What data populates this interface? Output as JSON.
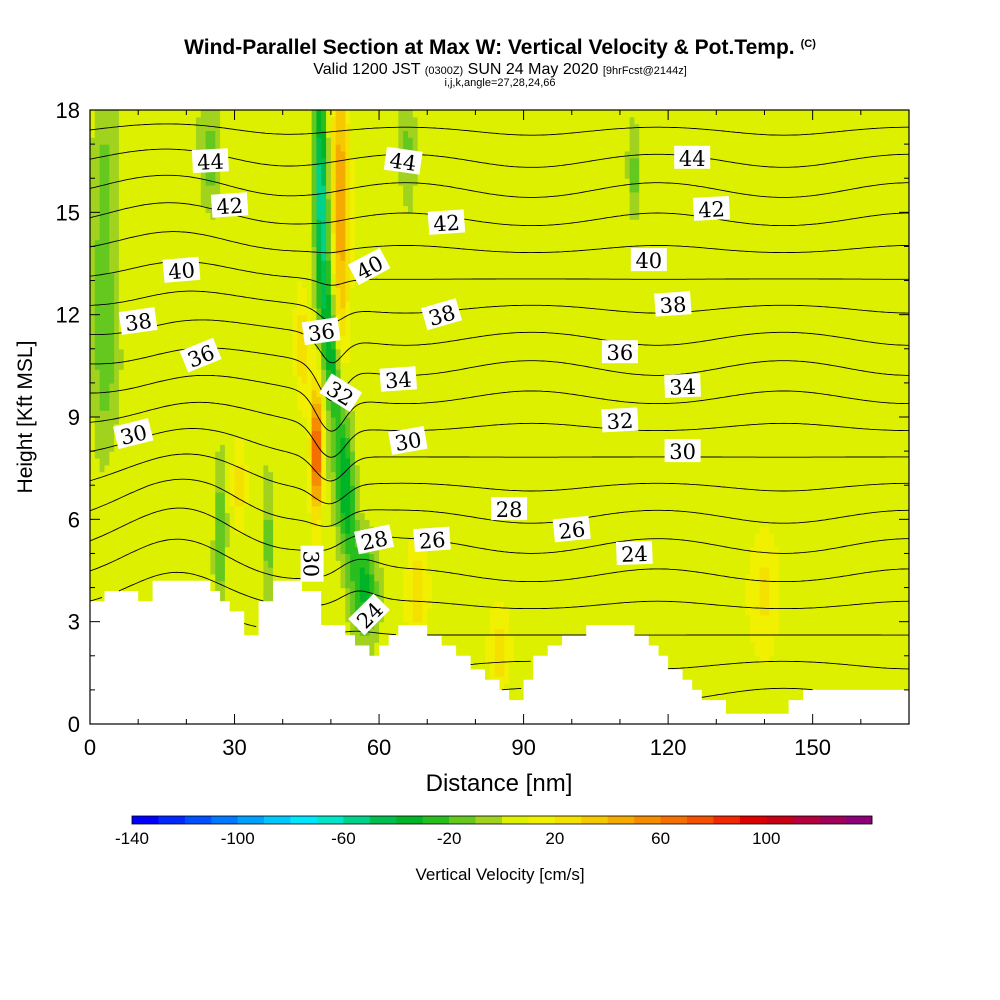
{
  "header": {
    "title": "Wind-Parallel Section at Max W: Vertical Velocity & Pot.Temp.",
    "copyright": "(C)",
    "valid_a": "Valid 1200 JST",
    "valid_b": "(0300Z)",
    "valid_c": "SUN 24 May 2020",
    "valid_d": "[9hrFcst@2144z]",
    "indices": "i,j,k,angle=27,28,24,66"
  },
  "chart_data": {
    "type": "contour",
    "xlabel": "Distance [nm]",
    "ylabel": "Height [Kft MSL]",
    "xlim": [
      0,
      170
    ],
    "ylim": [
      0,
      18
    ],
    "xticks": [
      0,
      30,
      60,
      90,
      120,
      150
    ],
    "yticks": [
      0,
      3,
      6,
      9,
      12,
      15,
      18
    ],
    "x_minor_step": 10,
    "y_minor_step": 1,
    "colorbar": {
      "label": "Vertical Velocity [cm/s]",
      "min": -140,
      "max": 140,
      "step": 10,
      "tick_labels": [
        -140,
        -100,
        -60,
        -20,
        20,
        60,
        100
      ],
      "colors": [
        "#0000ff",
        "#0028ff",
        "#0050ff",
        "#0078ff",
        "#00a0ff",
        "#00c8ff",
        "#00e6ff",
        "#00e6c8",
        "#00d28c",
        "#00be50",
        "#00b428",
        "#28be1e",
        "#64c81e",
        "#a0d21e",
        "#dcf000",
        "#f0f000",
        "#f5e100",
        "#f5c800",
        "#f5aa00",
        "#f58c00",
        "#f56e00",
        "#f55000",
        "#f02800",
        "#dc0000",
        "#c80014",
        "#b4003c",
        "#a0005a",
        "#8c0078"
      ]
    },
    "velocity_background": 5,
    "velocity_features": [
      {
        "x": 48,
        "y": 15.5,
        "value": -65,
        "sx": 1.4,
        "sy": 3.5,
        "tilt": -0.1
      },
      {
        "x": 50,
        "y": 11.0,
        "value": -45,
        "sx": 1.6,
        "sy": 2.0,
        "tilt": -0.35
      },
      {
        "x": 53,
        "y": 7.0,
        "value": -45,
        "sx": 2.0,
        "sy": 2.5,
        "tilt": -0.4
      },
      {
        "x": 57,
        "y": 4.0,
        "value": -35,
        "sx": 2.5,
        "sy": 1.5,
        "tilt": 0
      },
      {
        "x": 52,
        "y": 15.0,
        "value": 45,
        "sx": 1.8,
        "sy": 4.0,
        "tilt": 0
      },
      {
        "x": 47,
        "y": 8.0,
        "value": 75,
        "sx": 1.2,
        "sy": 1.8,
        "tilt": 0
      },
      {
        "x": 44,
        "y": 11.0,
        "value": 25,
        "sx": 1.5,
        "sy": 1.5,
        "tilt": 0
      },
      {
        "x": 3,
        "y": 13.0,
        "value": -25,
        "sx": 2.5,
        "sy": 5.0,
        "tilt": 0
      },
      {
        "x": 25,
        "y": 16.5,
        "value": -20,
        "sx": 2.0,
        "sy": 1.5,
        "tilt": 0
      },
      {
        "x": 27,
        "y": 5.5,
        "value": -25,
        "sx": 1.2,
        "sy": 2.2,
        "tilt": 0
      },
      {
        "x": 37,
        "y": 5.5,
        "value": -20,
        "sx": 1.2,
        "sy": 2.0,
        "tilt": 0
      },
      {
        "x": 66,
        "y": 17.0,
        "value": -20,
        "sx": 1.8,
        "sy": 1.5,
        "tilt": 0
      },
      {
        "x": 113,
        "y": 16.0,
        "value": -20,
        "sx": 1.2,
        "sy": 1.2,
        "tilt": 0
      },
      {
        "x": 31,
        "y": 7.0,
        "value": 25,
        "sx": 1.5,
        "sy": 1.2,
        "tilt": 0
      },
      {
        "x": 68,
        "y": 4.0,
        "value": 20,
        "sx": 2.0,
        "sy": 1.5,
        "tilt": 0
      },
      {
        "x": 85,
        "y": 2.0,
        "value": 25,
        "sx": 2.0,
        "sy": 1.0,
        "tilt": 0
      },
      {
        "x": 140,
        "y": 4.0,
        "value": 15,
        "sx": 3.0,
        "sy": 2.0,
        "tilt": 0
      }
    ],
    "terrain": [
      [
        0,
        3.6
      ],
      [
        3,
        3.6
      ],
      [
        3,
        3.9
      ],
      [
        10,
        3.9
      ],
      [
        10,
        3.6
      ],
      [
        13,
        3.6
      ],
      [
        13,
        4.2
      ],
      [
        25,
        4.2
      ],
      [
        25,
        3.9
      ],
      [
        27,
        3.9
      ],
      [
        27,
        3.6
      ],
      [
        29,
        3.6
      ],
      [
        29,
        3.3
      ],
      [
        32,
        3.3
      ],
      [
        32,
        2.6
      ],
      [
        35,
        2.6
      ],
      [
        35,
        3.6
      ],
      [
        38,
        3.6
      ],
      [
        38,
        4.2
      ],
      [
        44,
        4.2
      ],
      [
        44,
        3.9
      ],
      [
        48,
        3.9
      ],
      [
        48,
        2.9
      ],
      [
        53,
        2.9
      ],
      [
        53,
        2.6
      ],
      [
        55,
        2.6
      ],
      [
        55,
        2.3
      ],
      [
        58,
        2.3
      ],
      [
        58,
        2.0
      ],
      [
        60,
        2.0
      ],
      [
        60,
        2.3
      ],
      [
        62,
        2.3
      ],
      [
        62,
        2.6
      ],
      [
        64,
        2.6
      ],
      [
        64,
        2.9
      ],
      [
        70,
        2.9
      ],
      [
        70,
        2.6
      ],
      [
        73,
        2.6
      ],
      [
        73,
        2.3
      ],
      [
        76,
        2.3
      ],
      [
        76,
        2.0
      ],
      [
        79,
        2.0
      ],
      [
        79,
        1.6
      ],
      [
        82,
        1.6
      ],
      [
        82,
        1.3
      ],
      [
        85,
        1.3
      ],
      [
        85,
        1.0
      ],
      [
        87,
        1.0
      ],
      [
        87,
        0.7
      ],
      [
        90,
        0.7
      ],
      [
        90,
        1.3
      ],
      [
        92,
        1.3
      ],
      [
        92,
        2.0
      ],
      [
        95,
        2.0
      ],
      [
        95,
        2.3
      ],
      [
        98,
        2.3
      ],
      [
        98,
        2.6
      ],
      [
        103,
        2.6
      ],
      [
        103,
        2.9
      ],
      [
        113,
        2.9
      ],
      [
        113,
        2.6
      ],
      [
        116,
        2.6
      ],
      [
        116,
        2.3
      ],
      [
        118,
        2.3
      ],
      [
        118,
        2.0
      ],
      [
        120,
        2.0
      ],
      [
        120,
        1.6
      ],
      [
        123,
        1.6
      ],
      [
        123,
        1.3
      ],
      [
        125,
        1.3
      ],
      [
        125,
        1.0
      ],
      [
        127,
        1.0
      ],
      [
        127,
        0.7
      ],
      [
        132,
        0.7
      ],
      [
        132,
        0.3
      ],
      [
        145,
        0.3
      ],
      [
        145,
        0.7
      ],
      [
        148,
        0.7
      ],
      [
        148,
        1.0
      ],
      [
        170,
        1.0
      ]
    ],
    "isentrope_levels": [
      24,
      25,
      26,
      27,
      28,
      29,
      30,
      31,
      32,
      33,
      34,
      35,
      36,
      37,
      38,
      39,
      40,
      41,
      42,
      43,
      44,
      45
    ],
    "isentrope_labels": [
      {
        "text": "44",
        "x": 25,
        "y": 16.5,
        "angle": -3
      },
      {
        "text": "44",
        "x": 65,
        "y": 16.5,
        "angle": 8
      },
      {
        "text": "44",
        "x": 125,
        "y": 16.6,
        "angle": 0
      },
      {
        "text": "42",
        "x": 29,
        "y": 15.2,
        "angle": -4
      },
      {
        "text": "42",
        "x": 74,
        "y": 14.7,
        "angle": -4
      },
      {
        "text": "42",
        "x": 129,
        "y": 15.1,
        "angle": -3
      },
      {
        "text": "40",
        "x": 19,
        "y": 13.3,
        "angle": -5
      },
      {
        "text": "40",
        "x": 58,
        "y": 13.4,
        "angle": -28
      },
      {
        "text": "40",
        "x": 116,
        "y": 13.6,
        "angle": 0
      },
      {
        "text": "38",
        "x": 10,
        "y": 11.8,
        "angle": -8
      },
      {
        "text": "38",
        "x": 73,
        "y": 12.0,
        "angle": -16
      },
      {
        "text": "38",
        "x": 121,
        "y": 12.3,
        "angle": -4
      },
      {
        "text": "36",
        "x": 23,
        "y": 10.8,
        "angle": -22
      },
      {
        "text": "36",
        "x": 48,
        "y": 11.5,
        "angle": -8
      },
      {
        "text": "36",
        "x": 110,
        "y": 10.9,
        "angle": 0
      },
      {
        "text": "34",
        "x": 64,
        "y": 10.1,
        "angle": -4
      },
      {
        "text": "34",
        "x": 123,
        "y": 9.9,
        "angle": -2
      },
      {
        "text": "32",
        "x": 52,
        "y": 9.7,
        "angle": 32
      },
      {
        "text": "32",
        "x": 110,
        "y": 8.9,
        "angle": -3
      },
      {
        "text": "30",
        "x": 9,
        "y": 8.5,
        "angle": -14
      },
      {
        "text": "30",
        "x": 66,
        "y": 8.3,
        "angle": -10
      },
      {
        "text": "30",
        "x": 123,
        "y": 8.0,
        "angle": 0
      },
      {
        "text": "30",
        "x": 46,
        "y": 4.7,
        "angle": 90
      },
      {
        "text": "28",
        "x": 87,
        "y": 6.3,
        "angle": 0
      },
      {
        "text": "28",
        "x": 59,
        "y": 5.4,
        "angle": -12
      },
      {
        "text": "26",
        "x": 71,
        "y": 5.4,
        "angle": -4
      },
      {
        "text": "26",
        "x": 100,
        "y": 5.7,
        "angle": -6
      },
      {
        "text": "24",
        "x": 113,
        "y": 5.0,
        "angle": -2
      },
      {
        "text": "24",
        "x": 58,
        "y": 3.2,
        "angle": -45
      }
    ]
  }
}
